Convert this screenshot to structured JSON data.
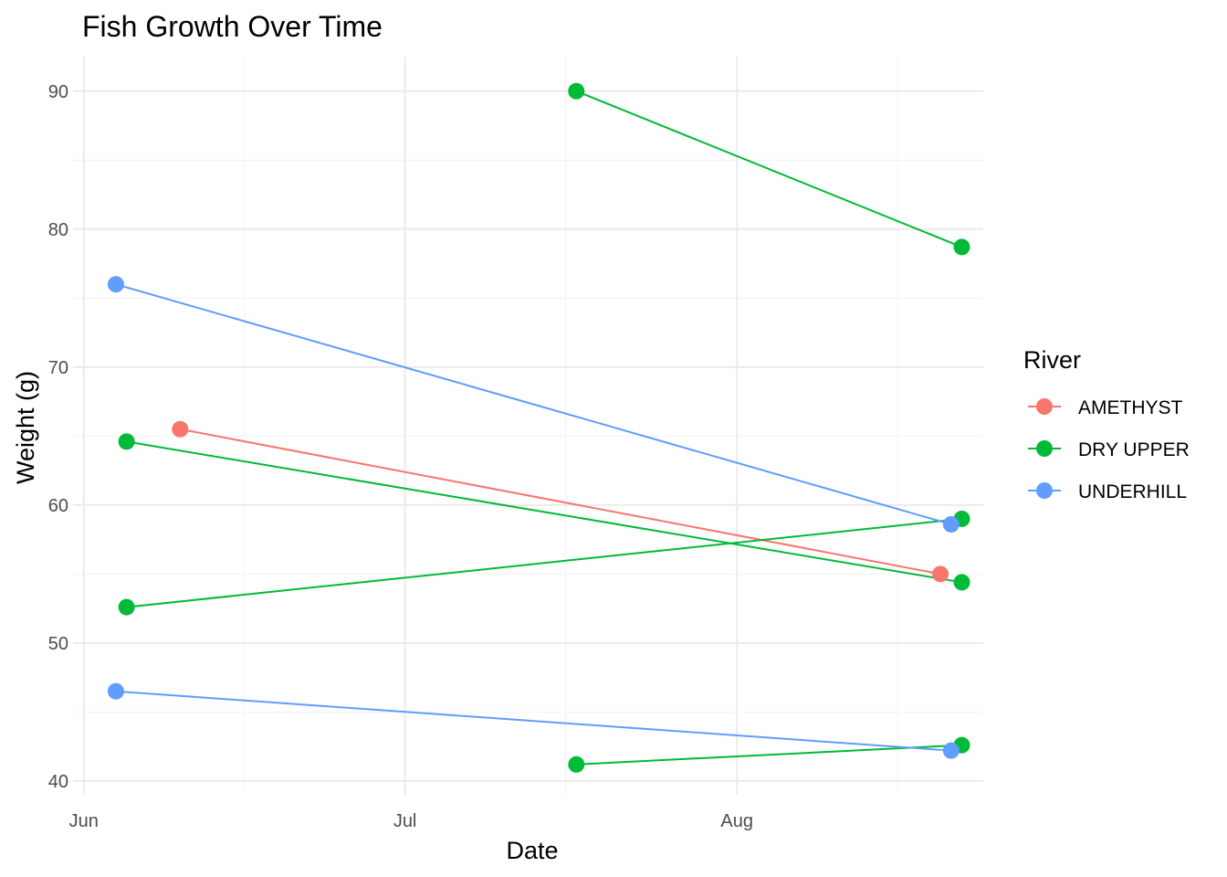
{
  "chart_data": {
    "type": "line",
    "title": "Fish Growth Over Time",
    "xlabel": "Date",
    "ylabel": "Weight (g)",
    "x_axis": {
      "type": "date",
      "range": [
        "2023-05-31",
        "2023-08-24"
      ],
      "ticks": [
        {
          "date": "2023-06-01",
          "label": "Jun"
        },
        {
          "date": "2023-07-01",
          "label": "Jul"
        },
        {
          "date": "2023-08-01",
          "label": "Aug"
        }
      ],
      "minor_ticks": [
        "2023-06-16",
        "2023-07-16",
        "2023-08-16"
      ]
    },
    "y_axis": {
      "range": [
        39,
        92.5
      ],
      "ticks": [
        40,
        50,
        60,
        70,
        80,
        90
      ],
      "minor_ticks": [
        45,
        55,
        65,
        75,
        85
      ]
    },
    "grid": true,
    "legend": {
      "title": "River",
      "position": "right",
      "entries": [
        {
          "label": "AMETHYST",
          "color": "#F8766D"
        },
        {
          "label": "DRY UPPER",
          "color": "#00BA38"
        },
        {
          "label": "UNDERHILL",
          "color": "#619CFF"
        }
      ]
    },
    "series": [
      {
        "river": "AMETHYST",
        "color": "#F8766D",
        "points": [
          {
            "x": "2023-06-10",
            "y": 65.5
          },
          {
            "x": "2023-08-20",
            "y": 55.0
          }
        ]
      },
      {
        "river": "DRY UPPER",
        "color": "#00BA38",
        "points": [
          {
            "x": "2023-06-05",
            "y": 64.6
          },
          {
            "x": "2023-08-22",
            "y": 54.4
          }
        ]
      },
      {
        "river": "DRY UPPER",
        "color": "#00BA38",
        "points": [
          {
            "x": "2023-06-05",
            "y": 52.6
          },
          {
            "x": "2023-08-22",
            "y": 59.0
          }
        ]
      },
      {
        "river": "DRY UPPER",
        "color": "#00BA38",
        "points": [
          {
            "x": "2023-07-17",
            "y": 90.0
          },
          {
            "x": "2023-08-22",
            "y": 78.7
          }
        ]
      },
      {
        "river": "DRY UPPER",
        "color": "#00BA38",
        "points": [
          {
            "x": "2023-07-17",
            "y": 41.2
          },
          {
            "x": "2023-08-22",
            "y": 42.6
          }
        ]
      },
      {
        "river": "UNDERHILL",
        "color": "#619CFF",
        "points": [
          {
            "x": "2023-06-04",
            "y": 76.0
          },
          {
            "x": "2023-08-21",
            "y": 58.6
          }
        ]
      },
      {
        "river": "UNDERHILL",
        "color": "#619CFF",
        "points": [
          {
            "x": "2023-06-04",
            "y": 46.5
          },
          {
            "x": "2023-08-21",
            "y": 42.2
          }
        ]
      }
    ]
  }
}
